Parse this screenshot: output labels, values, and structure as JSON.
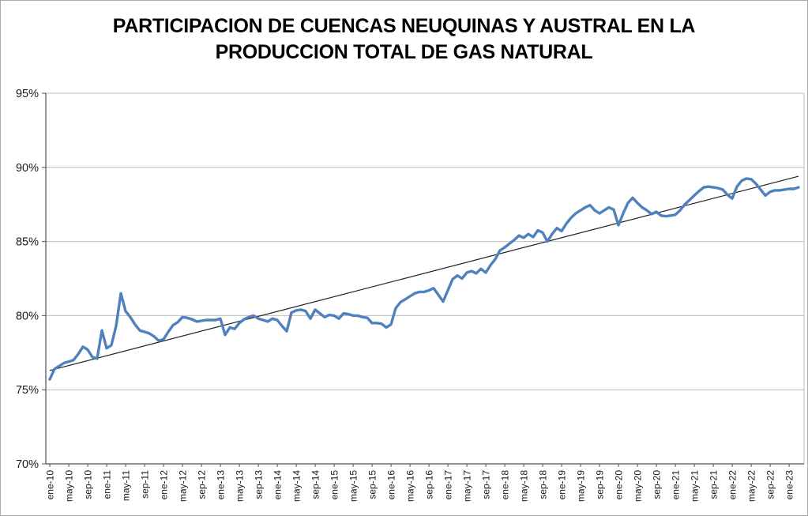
{
  "chart_data": {
    "type": "line",
    "title_line1": "PARTICIPACION DE CUENCAS NEUQUINAS Y AUSTRAL EN LA",
    "title_line2": "PRODUCCION TOTAL DE GAS NATURAL",
    "xlabel": "",
    "ylabel": "",
    "layout": {
      "grid": true,
      "legend": false,
      "x_labels_rotated_90": true
    },
    "y_axis": {
      "min": 70,
      "max": 95,
      "ticks": [
        95,
        90,
        85,
        80,
        75,
        70
      ],
      "tick_labels": [
        "95%",
        "90%",
        "85%",
        "80%",
        "75%",
        "70%"
      ]
    },
    "x_axis": {
      "tick_interval_months": 4,
      "tick_labels": [
        "ene-10",
        "may-10",
        "sep-10",
        "ene-11",
        "may-11",
        "sep-11",
        "ene-12",
        "may-12",
        "sep-12",
        "ene-13",
        "may-13",
        "sep-13",
        "ene-14",
        "may-14",
        "sep-14",
        "ene-15",
        "may-15",
        "sep-15",
        "ene-16",
        "may-16",
        "sep-16",
        "ene-17",
        "may-17",
        "sep-17",
        "ene-18",
        "may-18",
        "sep-18",
        "ene-19",
        "may-19",
        "sep-19",
        "ene-20",
        "may-20",
        "sep-20",
        "ene-21",
        "may-21",
        "sep-21",
        "ene-22",
        "may-22",
        "sep-22",
        "ene-23"
      ]
    },
    "series": [
      {
        "color": "#4F81BD",
        "values": [
          75.7,
          76.4,
          76.6,
          76.8,
          76.9,
          77.0,
          77.4,
          77.9,
          77.7,
          77.2,
          77.1,
          79.0,
          77.8,
          78.0,
          79.3,
          81.5,
          80.3,
          79.9,
          79.4,
          79.0,
          78.9,
          78.8,
          78.6,
          78.3,
          78.4,
          78.9,
          79.35,
          79.55,
          79.9,
          79.85,
          79.75,
          79.6,
          79.65,
          79.7,
          79.7,
          79.7,
          79.8,
          78.7,
          79.2,
          79.1,
          79.5,
          79.75,
          79.9,
          80.0,
          79.8,
          79.7,
          79.6,
          79.8,
          79.7,
          79.3,
          78.95,
          80.2,
          80.35,
          80.4,
          80.3,
          79.8,
          80.4,
          80.15,
          79.9,
          80.05,
          80.0,
          79.8,
          80.15,
          80.1,
          80.0,
          80.0,
          79.9,
          79.85,
          79.5,
          79.5,
          79.45,
          79.2,
          79.4,
          80.5,
          80.9,
          81.1,
          81.3,
          81.5,
          81.6,
          81.6,
          81.7,
          81.85,
          81.4,
          80.95,
          81.7,
          82.45,
          82.7,
          82.5,
          82.9,
          83.0,
          82.85,
          83.15,
          82.9,
          83.4,
          83.8,
          84.4,
          84.6,
          84.85,
          85.1,
          85.4,
          85.25,
          85.5,
          85.3,
          85.75,
          85.6,
          85.0,
          85.5,
          85.9,
          85.7,
          86.2,
          86.6,
          86.9,
          87.1,
          87.3,
          87.45,
          87.1,
          86.9,
          87.1,
          87.3,
          87.15,
          86.1,
          86.9,
          87.6,
          87.95,
          87.6,
          87.3,
          87.1,
          86.85,
          87.0,
          86.75,
          86.7,
          86.75,
          86.8,
          87.1,
          87.5,
          87.8,
          88.1,
          88.4,
          88.65,
          88.7,
          88.65,
          88.6,
          88.5,
          88.15,
          87.9,
          88.7,
          89.1,
          89.25,
          89.2,
          88.9,
          88.5,
          88.1,
          88.35,
          88.45,
          88.45,
          88.5,
          88.55,
          88.55,
          88.65
        ]
      }
    ],
    "trendline": {
      "color": "#1F1F1F",
      "start": 76.3,
      "end": 89.4
    }
  },
  "colors": {
    "background": "#FFFFFF",
    "border": "#ABABAB",
    "gridline": "#BDBDBD",
    "axis": "#4D4D4D",
    "text": "#1A1A1A"
  }
}
